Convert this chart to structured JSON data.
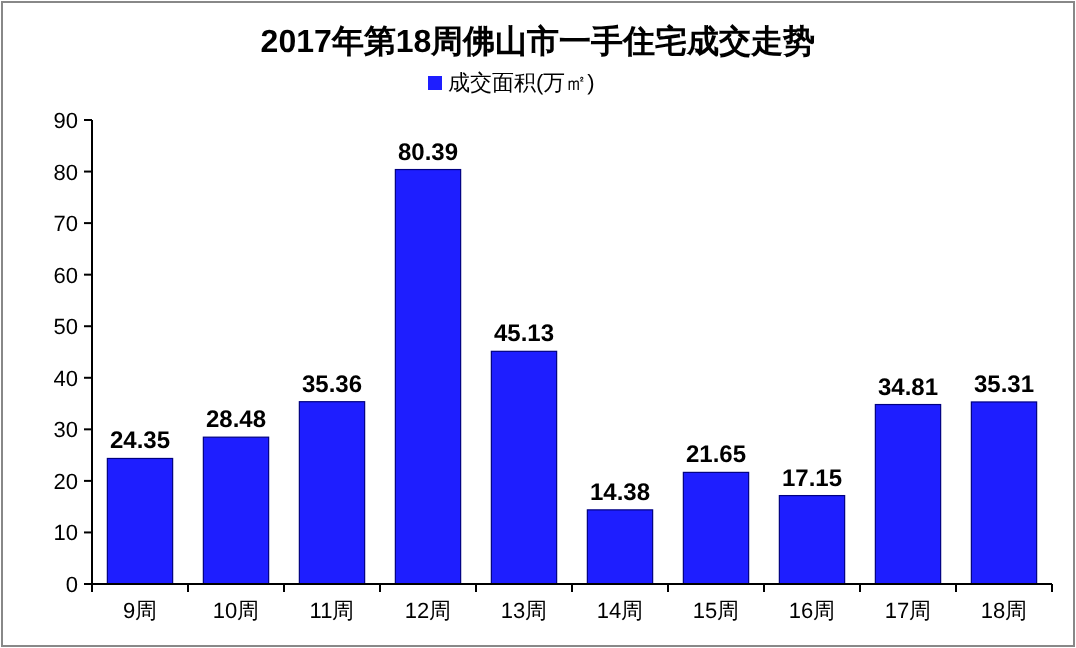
{
  "chart_data": {
    "type": "bar",
    "title": "2017年第18周佛山市一手住宅成交走势",
    "categories": [
      "9周",
      "10周",
      "11周",
      "12周",
      "13周",
      "14周",
      "15周",
      "16周",
      "17周",
      "18周"
    ],
    "series": [
      {
        "name": "成交面积(万㎡)",
        "color": "#1e1eff",
        "values": [
          24.35,
          28.48,
          35.36,
          80.39,
          45.13,
          14.38,
          21.65,
          17.15,
          34.81,
          35.31
        ]
      }
    ],
    "ylim": [
      0,
      90
    ],
    "yticks": [
      0,
      10,
      20,
      30,
      40,
      50,
      60,
      70,
      80,
      90
    ],
    "grid": false,
    "legend": "top",
    "data_labels": true
  }
}
